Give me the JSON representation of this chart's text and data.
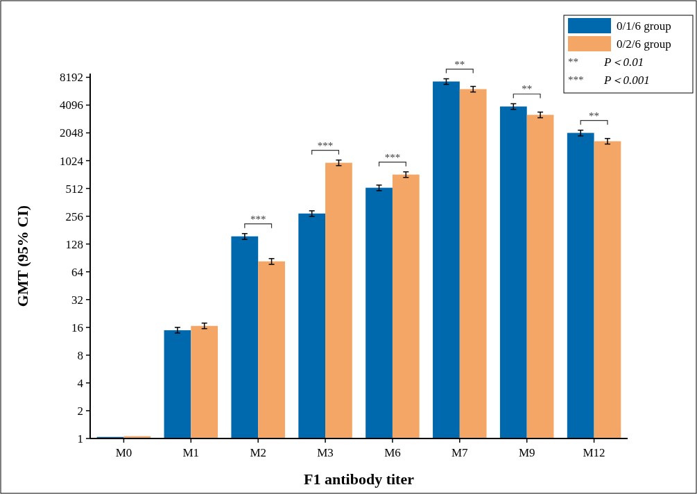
{
  "chart_data": {
    "type": "bar",
    "xlabel": "F1 antibody titer",
    "ylabel": "GMT (95% CI)",
    "categories": [
      "M0",
      "M1",
      "M2",
      "M3",
      "M6",
      "M7",
      "M9",
      "M12"
    ],
    "series": [
      {
        "name": "0/1/6 group",
        "color": "#0068ac",
        "values": [
          1.04,
          14.9,
          155,
          274,
          521,
          7380,
          3956,
          2048
        ],
        "errors": [
          null,
          [
            13.9,
            16.0
          ],
          [
            144,
            166
          ],
          [
            255,
            293
          ],
          [
            485,
            557
          ],
          [
            6870,
            7900
          ],
          [
            3680,
            4240
          ],
          [
            1900,
            2190
          ]
        ]
      },
      {
        "name": "0/2/6 group",
        "color": "#f3a665",
        "values": [
          1.06,
          16.6,
          83,
          972,
          724,
          6100,
          3213,
          1663
        ],
        "errors": [
          null,
          [
            15.5,
            17.8
          ],
          [
            77,
            89
          ],
          [
            905,
            1040
          ],
          [
            674,
            775
          ],
          [
            5680,
            6530
          ],
          [
            2990,
            3440
          ],
          [
            1550,
            1780
          ]
        ]
      }
    ],
    "log": true,
    "ylim": [
      1,
      9000
    ],
    "yticks": [
      1,
      2,
      4,
      8,
      16,
      32,
      64,
      128,
      256,
      512,
      1024,
      2048,
      4096,
      8192
    ],
    "legend": "top right",
    "grid": false,
    "annotations": [
      "***",
      "***",
      "***",
      "**",
      "**",
      "**",
      "**\tP＜0.01",
      "***\tP＜0.001"
    ]
  }
}
